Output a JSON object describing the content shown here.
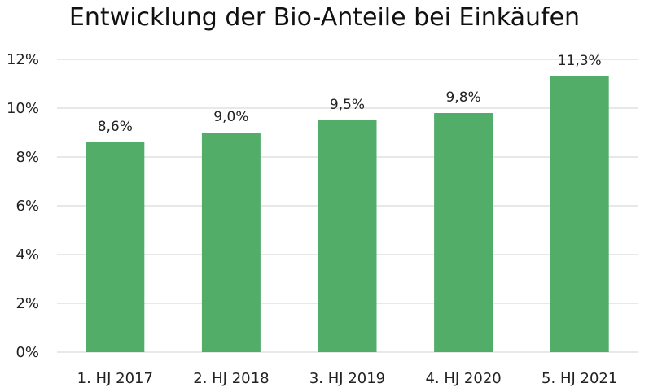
{
  "chart_data": {
    "type": "bar",
    "title": "Entwicklung der Bio-Anteile bei Einkäufen",
    "xlabel": "",
    "ylabel": "",
    "categories": [
      "1. HJ 2017",
      "2. HJ 2018",
      "3. HJ 2019",
      "4. HJ 2020",
      "5. HJ 2021"
    ],
    "values": [
      8.6,
      9.0,
      9.5,
      9.8,
      11.3
    ],
    "data_labels": [
      "8,6%",
      "9,0%",
      "9,5%",
      "9,8%",
      "11,3%"
    ],
    "ylim": [
      0,
      12
    ],
    "y_ticks": [
      0,
      2,
      4,
      6,
      8,
      10,
      12
    ],
    "y_tick_labels": [
      "0%",
      "2%",
      "4%",
      "6%",
      "8%",
      "10%",
      "12%"
    ],
    "grid": true,
    "legend": "none",
    "colors": {
      "bar": "#52ad68",
      "grid": "#d9d9d9",
      "axis": "#d9d9d9"
    }
  }
}
